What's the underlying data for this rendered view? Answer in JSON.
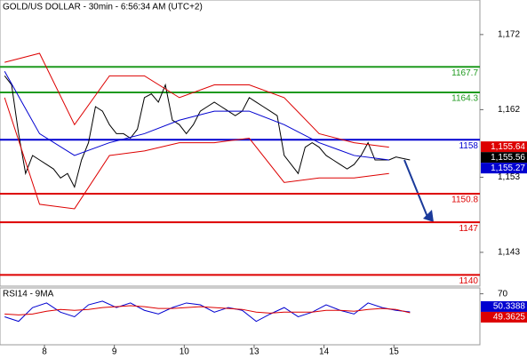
{
  "chart_data": [
    {
      "type": "line",
      "title": "GOLD/US DOLLAR - 30min - 6:56:34 AM (UTC+2)",
      "xlim": [
        0.364,
        7.23
      ],
      "ylim": [
        1138.5,
        1176.6
      ],
      "yticks": [
        {
          "value": 1172,
          "label": "1,172"
        },
        {
          "value": 1162,
          "label": "1,162"
        },
        {
          "value": 1153,
          "label": "1,153"
        },
        {
          "value": 1143,
          "label": "1,143"
        }
      ],
      "levels": [
        {
          "value": 1167.7,
          "color": "#1f9a1f"
        },
        {
          "value": 1164.3,
          "color": "#1f9a1f"
        },
        {
          "value": 1158,
          "color": "#0000d0"
        },
        {
          "value": 1150.8,
          "color": "#dd0000"
        },
        {
          "value": 1147,
          "color": "#dd0000"
        },
        {
          "value": 1140,
          "color": "#dd0000"
        }
      ],
      "series": [
        {
          "color": "#000000",
          "x": [
            0.43,
            0.53,
            0.63,
            0.73,
            0.83,
            0.93,
            1.03,
            1.13,
            1.23,
            1.33,
            1.43,
            1.53,
            1.63,
            1.73,
            1.83,
            1.93,
            2.03,
            2.13,
            2.23,
            2.33,
            2.43,
            2.53,
            2.63,
            2.73,
            2.83,
            2.93,
            3.03,
            3.13,
            3.23,
            3.33,
            3.43,
            3.53,
            3.63,
            3.73,
            3.83,
            3.93,
            4.03,
            4.13,
            4.23,
            4.33,
            4.43,
            4.53,
            4.63,
            4.73,
            4.83,
            4.93,
            5.03,
            5.13,
            5.23,
            5.33,
            5.43,
            5.53,
            5.63,
            5.73,
            5.83,
            5.93,
            6.03,
            6.13,
            6.23
          ],
          "values": [
            1166.5,
            1165.3,
            1158.8,
            1153.5,
            1155.9,
            1155.3,
            1154.7,
            1154.1,
            1152.9,
            1153.5,
            1151.7,
            1155.3,
            1157.6,
            1162.4,
            1161.8,
            1160.0,
            1158.8,
            1158.8,
            1158.2,
            1159.4,
            1163.6,
            1164.1,
            1163.0,
            1165.3,
            1160.6,
            1160.0,
            1158.8,
            1160.0,
            1161.8,
            1162.4,
            1163.0,
            1162.4,
            1161.8,
            1161.2,
            1161.8,
            1163.6,
            1163.0,
            1162.4,
            1161.8,
            1161.2,
            1155.9,
            1154.7,
            1153.5,
            1157.0,
            1157.6,
            1157.0,
            1155.9,
            1155.3,
            1154.7,
            1154.1,
            1154.7,
            1155.9,
            1157.6,
            1155.3,
            1155.3,
            1155.3,
            1155.7,
            1155.5,
            1155.3
          ]
        },
        {
          "color": "#dd0000",
          "x": [
            0.43,
            0.93,
            1.43,
            1.93,
            2.43,
            2.93,
            3.43,
            3.93,
            4.43,
            4.93,
            5.43,
            5.93
          ],
          "values": [
            1168.3,
            1169.5,
            1160.0,
            1166.5,
            1166.5,
            1163.6,
            1165.3,
            1165.3,
            1163.6,
            1158.8,
            1157.6,
            1157.0
          ]
        },
        {
          "color": "#dd0000",
          "x": [
            0.43,
            0.93,
            1.43,
            1.93,
            2.43,
            2.93,
            3.43,
            3.93,
            4.43,
            4.93,
            5.43,
            5.93
          ],
          "values": [
            1163.6,
            1149.4,
            1148.8,
            1155.9,
            1156.5,
            1157.6,
            1157.6,
            1158.2,
            1152.3,
            1152.9,
            1152.9,
            1153.5
          ]
        },
        {
          "color": "#0000d0",
          "x": [
            0.43,
            0.93,
            1.43,
            1.93,
            2.43,
            2.93,
            3.43,
            3.93,
            4.43,
            4.93,
            5.43,
            5.93
          ],
          "values": [
            1167.1,
            1158.8,
            1155.9,
            1157.6,
            1158.8,
            1160.6,
            1161.8,
            1161.8,
            1160.0,
            1157.6,
            1155.9,
            1155.3
          ]
        }
      ],
      "tags": [
        {
          "value": 1155.64,
          "label": "1,155.64",
          "color": "#dd0000"
        },
        {
          "value": 1155.56,
          "label": "1,155.56",
          "color": "#000000"
        },
        {
          "value": 1155.27,
          "label": "1,155.27",
          "color": "#0000d0"
        }
      ]
    },
    {
      "type": "line",
      "title": "RSI14 - 9MA",
      "xlim": [
        0.364,
        7.23
      ],
      "ylim": [
        14.5,
        76.4
      ],
      "yticks": [
        70
      ],
      "xticks": [
        {
          "value": 1,
          "label": "8"
        },
        {
          "value": 2,
          "label": "9"
        },
        {
          "value": 3,
          "label": "10"
        },
        {
          "value": 4,
          "label": "13"
        },
        {
          "value": 5,
          "label": "14"
        },
        {
          "value": 6,
          "label": "15"
        }
      ],
      "series": [
        {
          "color": "#0000d0",
          "x": [
            0.43,
            0.63,
            0.83,
            1.03,
            1.23,
            1.43,
            1.63,
            1.83,
            2.03,
            2.23,
            2.43,
            2.63,
            2.83,
            3.03,
            3.23,
            3.43,
            3.63,
            3.83,
            4.03,
            4.23,
            4.43,
            4.63,
            4.83,
            5.03,
            5.23,
            5.43,
            5.63,
            5.83,
            6.03,
            6.23
          ],
          "values": [
            45,
            40,
            55,
            60,
            50,
            45,
            58,
            62,
            55,
            60,
            52,
            48,
            55,
            60,
            58,
            50,
            55,
            52,
            40,
            48,
            55,
            45,
            50,
            58,
            52,
            48,
            60,
            55,
            52,
            50.3388
          ]
        },
        {
          "color": "#dd0000",
          "x": [
            0.43,
            0.63,
            0.83,
            1.03,
            1.23,
            1.43,
            1.63,
            1.83,
            2.03,
            2.23,
            2.43,
            2.63,
            2.83,
            3.03,
            3.23,
            3.43,
            3.63,
            3.83,
            4.03,
            4.23,
            4.43,
            4.63,
            4.83,
            5.03,
            5.23,
            5.43,
            5.63,
            5.83,
            6.03,
            6.23
          ],
          "values": [
            48,
            47,
            48,
            51,
            53,
            52,
            53,
            55,
            56,
            57,
            56,
            54,
            54,
            55,
            56,
            55,
            54,
            53,
            50,
            49,
            50,
            50,
            50,
            52,
            52,
            51,
            53,
            54,
            53,
            49.3625
          ]
        }
      ],
      "tags": [
        {
          "value": 50.3388,
          "color": "#0000d0"
        },
        {
          "value": 49.3625,
          "color": "#dd0000"
        }
      ]
    }
  ]
}
